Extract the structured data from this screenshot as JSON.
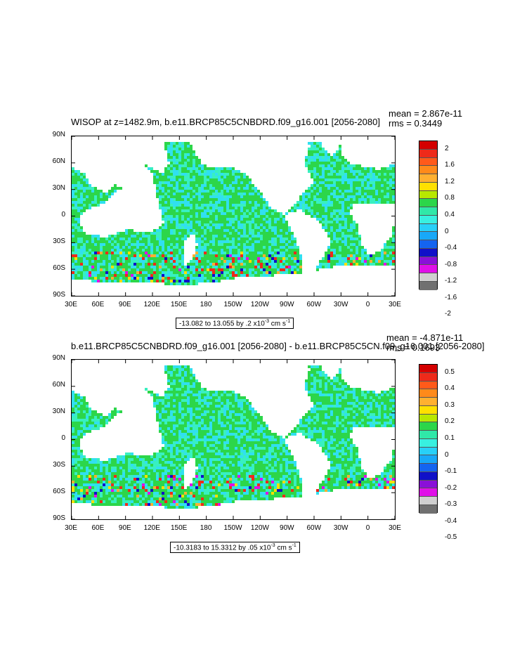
{
  "panels": [
    {
      "title": "WISOP at z=1482.9m, b.e11.BRCP85C5CNBDRD.f09_g16.001 [2056-2080]",
      "mean": "mean = 2.867e-11",
      "rms": "rms = 0.3449",
      "subtitle_prefix": "-13.082 to 13.055 by .2 x10",
      "subtitle_exp": "-3",
      "subtitle_suffix": " cm s",
      "subtitle_unit_exp": "-1",
      "colorbar_labels": [
        "2",
        "1.6",
        "1.2",
        "0.8",
        "0.4",
        "0",
        "-0.4",
        "-0.8",
        "-1.2",
        "-1.6",
        "-2"
      ]
    },
    {
      "title": "b.e11.BRCP85C5CNBDRD.f09_g16.001 [2056-2080] - b.e11.BRCP85C5CN.f09_g16.001 [2056-2080]",
      "mean": "mean = -4.871e-11",
      "rms": "rms = 0.1693",
      "subtitle_prefix": "-10.3183 to 15.3312 by .05 x10",
      "subtitle_exp": "-3",
      "subtitle_suffix": " cm s",
      "subtitle_unit_exp": "-1",
      "colorbar_labels": [
        "0.5",
        "0.4",
        "0.3",
        "0.2",
        "0.1",
        "0",
        "-0.1",
        "-0.2",
        "-0.3",
        "-0.4",
        "-0.5"
      ]
    }
  ],
  "lat_labels": [
    "90N",
    "60N",
    "30N",
    "0",
    "30S",
    "60S",
    "90S"
  ],
  "lon_labels": [
    "30E",
    "60E",
    "90E",
    "120E",
    "150E",
    "180",
    "150W",
    "120W",
    "90W",
    "60W",
    "30W",
    "0",
    "30E"
  ],
  "colorbar_colors": [
    "#d40000",
    "#ee2a1a",
    "#ff5a1a",
    "#ff8a1a",
    "#ffb030",
    "#ffe000",
    "#b8e800",
    "#2cd64a",
    "#30e8a8",
    "#38f0e0",
    "#28d0f8",
    "#18a8f8",
    "#1464f0",
    "#1010c8",
    "#8a10d8",
    "#e010e8",
    "#d0d0d0",
    "#707070"
  ]
}
